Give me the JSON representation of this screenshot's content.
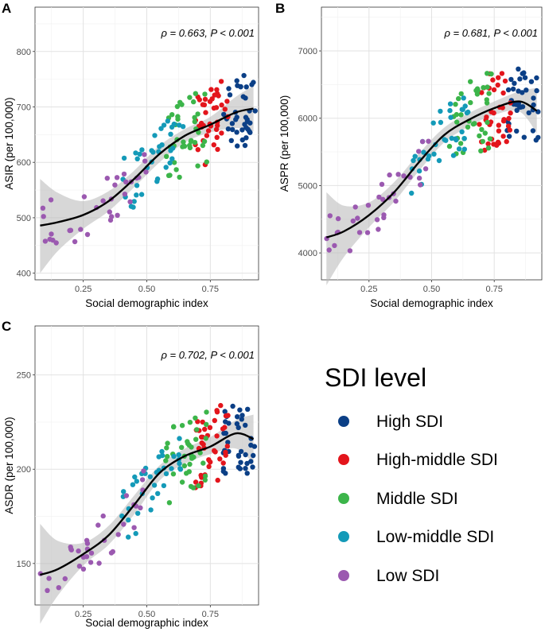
{
  "legend": {
    "title": "SDI level",
    "items": [
      {
        "label": "High SDI",
        "color": "#0b3f86"
      },
      {
        "label": "High-middle SDI",
        "color": "#e3151c"
      },
      {
        "label": "Middle SDI",
        "color": "#3cb54a"
      },
      {
        "label": "Low-middle SDI",
        "color": "#149ab8"
      },
      {
        "label": "Low SDI",
        "color": "#9b59b0"
      }
    ]
  },
  "chart_data": [
    {
      "panel": "A",
      "type": "scatter",
      "xlabel": "Social demographic index",
      "ylabel": "ASIR (per 100,000)",
      "annotation": "ρ = 0.663, P < 0.001",
      "xlim": [
        0.06,
        0.94
      ],
      "ylim": [
        388,
        880
      ],
      "xticks": [
        "0.25",
        "0.50",
        "0.75"
      ],
      "xtick_values": [
        0.25,
        0.5,
        0.75
      ],
      "yticks": [
        "400",
        "500",
        "600",
        "700",
        "800"
      ],
      "ytick_values": [
        400,
        500,
        600,
        700,
        800
      ],
      "fit_curve": [
        [
          0.08,
          486
        ],
        [
          0.15,
          492
        ],
        [
          0.25,
          505
        ],
        [
          0.35,
          530
        ],
        [
          0.45,
          570
        ],
        [
          0.55,
          615
        ],
        [
          0.65,
          648
        ],
        [
          0.75,
          668
        ],
        [
          0.85,
          690
        ],
        [
          0.92,
          697
        ]
      ],
      "ci_upper": [
        [
          0.08,
          570
        ],
        [
          0.15,
          545
        ],
        [
          0.25,
          530
        ],
        [
          0.35,
          548
        ],
        [
          0.45,
          585
        ],
        [
          0.55,
          630
        ],
        [
          0.65,
          660
        ],
        [
          0.75,
          682
        ],
        [
          0.85,
          718
        ],
        [
          0.92,
          738
        ]
      ],
      "ci_lower": [
        [
          0.08,
          400
        ],
        [
          0.15,
          440
        ],
        [
          0.25,
          480
        ],
        [
          0.35,
          512
        ],
        [
          0.45,
          555
        ],
        [
          0.55,
          600
        ],
        [
          0.65,
          636
        ],
        [
          0.75,
          654
        ],
        [
          0.85,
          662
        ],
        [
          0.92,
          656
        ]
      ]
    },
    {
      "panel": "B",
      "type": "scatter",
      "xlabel": "Social demographic index",
      "ylabel": "ASPR (per 100,000)",
      "annotation": "ρ = 0.681, P < 0.001",
      "xlim": [
        0.06,
        0.94
      ],
      "ylim": [
        3600,
        7650
      ],
      "xticks": [
        "0.25",
        "0.50",
        "0.75"
      ],
      "xtick_values": [
        0.25,
        0.5,
        0.75
      ],
      "yticks": [
        "4000",
        "5000",
        "6000",
        "7000"
      ],
      "ytick_values": [
        4000,
        5000,
        6000,
        7000
      ],
      "fit_curve": [
        [
          0.08,
          4230
        ],
        [
          0.15,
          4320
        ],
        [
          0.25,
          4560
        ],
        [
          0.35,
          4900
        ],
        [
          0.45,
          5350
        ],
        [
          0.55,
          5750
        ],
        [
          0.65,
          5980
        ],
        [
          0.75,
          6150
        ],
        [
          0.85,
          6250
        ],
        [
          0.92,
          6110
        ]
      ],
      "ci_upper": [
        [
          0.08,
          4900
        ],
        [
          0.15,
          4700
        ],
        [
          0.25,
          4750
        ],
        [
          0.35,
          5050
        ],
        [
          0.45,
          5480
        ],
        [
          0.55,
          5860
        ],
        [
          0.65,
          6080
        ],
        [
          0.75,
          6250
        ],
        [
          0.85,
          6400
        ],
        [
          0.92,
          6450
        ]
      ],
      "ci_lower": [
        [
          0.08,
          3520
        ],
        [
          0.15,
          3940
        ],
        [
          0.25,
          4380
        ],
        [
          0.35,
          4760
        ],
        [
          0.45,
          5220
        ],
        [
          0.55,
          5640
        ],
        [
          0.65,
          5880
        ],
        [
          0.75,
          6050
        ],
        [
          0.85,
          6100
        ],
        [
          0.92,
          5780
        ]
      ]
    },
    {
      "panel": "C",
      "type": "scatter",
      "xlabel": "Social demographic index",
      "ylabel": "ASDR (per 100,000)",
      "annotation": "ρ = 0.702, P < 0.001",
      "xlim": [
        0.06,
        0.94
      ],
      "ylim": [
        128,
        276
      ],
      "xticks": [
        "0.25",
        "0.50",
        "0.75"
      ],
      "xtick_values": [
        0.25,
        0.5,
        0.75
      ],
      "yticks": [
        "150",
        "200",
        "250"
      ],
      "ytick_values": [
        150,
        200,
        250
      ],
      "fit_curve": [
        [
          0.08,
          144
        ],
        [
          0.15,
          147
        ],
        [
          0.25,
          155
        ],
        [
          0.35,
          165
        ],
        [
          0.45,
          181
        ],
        [
          0.55,
          198
        ],
        [
          0.65,
          207
        ],
        [
          0.75,
          212
        ],
        [
          0.85,
          219
        ],
        [
          0.92,
          216
        ]
      ],
      "ci_upper": [
        [
          0.08,
          171
        ],
        [
          0.15,
          162
        ],
        [
          0.25,
          161
        ],
        [
          0.35,
          170
        ],
        [
          0.45,
          186
        ],
        [
          0.55,
          202
        ],
        [
          0.65,
          211
        ],
        [
          0.75,
          217
        ],
        [
          0.85,
          226
        ],
        [
          0.92,
          229
        ]
      ],
      "ci_lower": [
        [
          0.08,
          118
        ],
        [
          0.15,
          133
        ],
        [
          0.25,
          149
        ],
        [
          0.35,
          160
        ],
        [
          0.45,
          176
        ],
        [
          0.55,
          194
        ],
        [
          0.65,
          203
        ],
        [
          0.75,
          208
        ],
        [
          0.85,
          211
        ],
        [
          0.92,
          203
        ]
      ]
    }
  ]
}
